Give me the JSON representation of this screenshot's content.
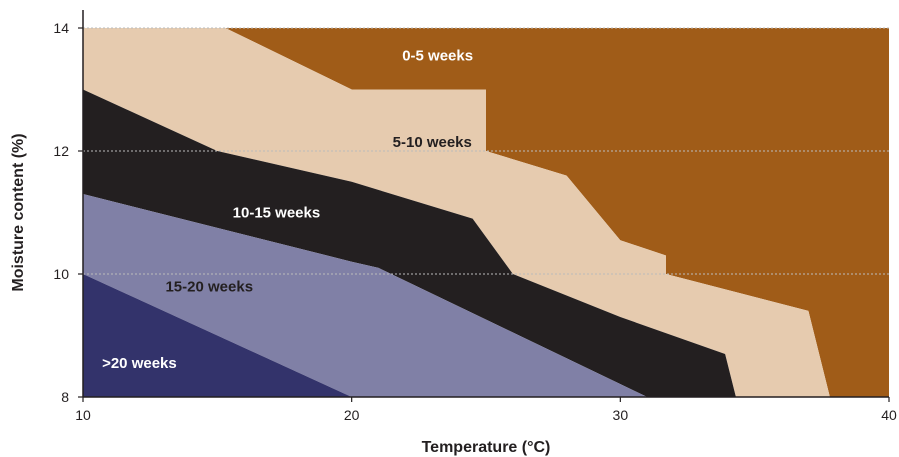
{
  "chart_data": {
    "type": "area",
    "xlabel": "Temperature (°C)",
    "ylabel": "Moisture content (%)",
    "xlim": [
      10,
      40
    ],
    "ylim": [
      8,
      14
    ],
    "xticks": [
      "10",
      "20",
      "30",
      "40"
    ],
    "yticks": [
      "8",
      "10",
      "12",
      "14"
    ],
    "grid": "horizontal dotted at 10, 12, 14",
    "colors": {
      "0-5": "#a05c18",
      "5-10": "#e6cbaf",
      "10-15": "#231f20",
      "15-20": "#8080a6",
      ">20": "#33336b",
      "grid": "#bbbbbb",
      "axis": "#231f20"
    },
    "series": [
      {
        "name": "0-5 weeks",
        "label_at": [
          23.2,
          13.55
        ],
        "label_color": "#ffffff",
        "boundary": [
          [
            15.3,
            14.0
          ],
          [
            20.0,
            13.0
          ],
          [
            25.0,
            13.0
          ],
          [
            25.0,
            12.0
          ],
          [
            28.0,
            11.6
          ],
          [
            30.0,
            10.55
          ],
          [
            31.7,
            10.3
          ],
          [
            31.7,
            10.0
          ],
          [
            37.0,
            9.4
          ],
          [
            37.8,
            8.0
          ]
        ]
      },
      {
        "name": "5-10 weeks",
        "label_at": [
          23.0,
          12.15
        ],
        "label_color": "#231f20",
        "boundary": [
          [
            10.0,
            14.0
          ],
          [
            10.0,
            13.0
          ],
          [
            15.0,
            12.0
          ],
          [
            20.0,
            11.5
          ],
          [
            24.5,
            10.9
          ],
          [
            26.0,
            10.0
          ],
          [
            30.0,
            9.3
          ],
          [
            33.9,
            8.7
          ],
          [
            34.3,
            8.0
          ]
        ]
      },
      {
        "name": "10-15 weeks",
        "label_at": [
          17.2,
          11.0
        ],
        "label_color": "#ffffff",
        "boundary": [
          [
            10.0,
            13.0
          ],
          [
            10.0,
            11.3
          ],
          [
            20.0,
            10.2
          ],
          [
            21.0,
            10.1
          ],
          [
            31.0,
            8.0
          ]
        ]
      },
      {
        "name": "15-20 weeks",
        "label_at": [
          14.7,
          9.8
        ],
        "label_color": "#231f20",
        "boundary": [
          [
            10.0,
            11.3
          ],
          [
            10.0,
            10.0
          ],
          [
            20.0,
            8.0
          ]
        ]
      },
      {
        "name": ">20 weeks",
        "label_at": [
          12.1,
          8.55
        ],
        "label_color": "#ffffff",
        "boundary": [
          [
            10.0,
            10.0
          ],
          [
            10.0,
            8.0
          ],
          [
            20.0,
            8.0
          ]
        ]
      }
    ]
  }
}
